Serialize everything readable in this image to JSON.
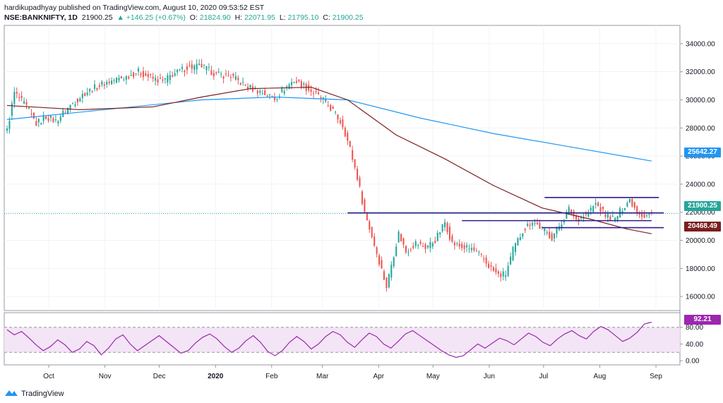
{
  "header": {
    "publish_line": "hardikupadhyay published on TradingView.com, August 10, 2020 09:53:52 EST",
    "symbol": "NSE:BANKNIFTY, 1D",
    "last": "21900.25",
    "change": "▲ +146.25 (+0.67%)",
    "open_label": "O:",
    "open": "21824.90",
    "high_label": "H:",
    "high": "22071.95",
    "low_label": "L:",
    "low": "21795.10",
    "close_label": "C:",
    "close": "21900.25"
  },
  "footer": {
    "brand": "TradingView"
  },
  "colors": {
    "up": "#26a69a",
    "down": "#ef5350",
    "ma_fast": "#7b1e1e",
    "ma_slow": "#2196f3",
    "levels": "#311b92",
    "rsi": "#9c27b0",
    "rsi_band": "#f3e5f5",
    "last_price": "#26a69a",
    "ma_fast_tag": "#7b1e1e",
    "ma_slow_tag": "#2196f3"
  },
  "chart_data": [
    {
      "type": "candlestick",
      "title": "",
      "x_ticks": [
        "Oct",
        "Nov",
        "Dec",
        "2020",
        "Feb",
        "Mar",
        "Apr",
        "May",
        "Jun",
        "Jul",
        "Aug",
        "Sep"
      ],
      "y_ticks": [
        "34000.00",
        "32000.00",
        "30000.00",
        "28000.00",
        "26000.00",
        "24000.00",
        "22000.00",
        "20000.00",
        "18000.00",
        "16000.00"
      ],
      "ylim": [
        15000,
        35200
      ],
      "close_path": [
        [
          0,
          27800
        ],
        [
          3,
          30500
        ],
        [
          8,
          29500
        ],
        [
          12,
          28300
        ],
        [
          16,
          28800
        ],
        [
          20,
          28500
        ],
        [
          26,
          29600
        ],
        [
          32,
          30500
        ],
        [
          40,
          31200
        ],
        [
          48,
          31600
        ],
        [
          54,
          32000
        ],
        [
          60,
          31500
        ],
        [
          64,
          31300
        ],
        [
          68,
          31800
        ],
        [
          74,
          32300
        ],
        [
          80,
          32400
        ],
        [
          86,
          31800
        ],
        [
          92,
          31700
        ],
        [
          98,
          31000
        ],
        [
          104,
          30600
        ],
        [
          110,
          30100
        ],
        [
          114,
          30800
        ],
        [
          118,
          31400
        ],
        [
          122,
          31000
        ],
        [
          126,
          30500
        ],
        [
          130,
          30000
        ],
        [
          134,
          29200
        ],
        [
          138,
          28200
        ],
        [
          141,
          26500
        ],
        [
          144,
          24500
        ],
        [
          147,
          22000
        ],
        [
          150,
          20300
        ],
        [
          153,
          18500
        ],
        [
          156,
          16700
        ],
        [
          158,
          18300
        ],
        [
          161,
          20500
        ],
        [
          164,
          19200
        ],
        [
          168,
          19800
        ],
        [
          172,
          19500
        ],
        [
          176,
          20000
        ],
        [
          180,
          21300
        ],
        [
          183,
          19800
        ],
        [
          187,
          19500
        ],
        [
          191,
          19400
        ],
        [
          195,
          18800
        ],
        [
          199,
          18000
        ],
        [
          202,
          17500
        ],
        [
          205,
          17600
        ],
        [
          208,
          19300
        ],
        [
          212,
          20700
        ],
        [
          216,
          21400
        ],
        [
          220,
          20800
        ],
        [
          224,
          20200
        ],
        [
          228,
          21300
        ],
        [
          231,
          22200
        ],
        [
          234,
          21500
        ],
        [
          238,
          21800
        ],
        [
          242,
          22600
        ],
        [
          246,
          21800
        ],
        [
          250,
          21500
        ],
        [
          253,
          22300
        ],
        [
          256,
          22900
        ],
        [
          259,
          22100
        ],
        [
          262,
          21700
        ],
        [
          265,
          21900
        ]
      ],
      "ma_slow": {
        "label": "25642.27",
        "points": [
          [
            0,
            28600
          ],
          [
            40,
            29300
          ],
          [
            80,
            30000
          ],
          [
            110,
            30200
          ],
          [
            140,
            30000
          ],
          [
            170,
            28700
          ],
          [
            200,
            27600
          ],
          [
            230,
            26700
          ],
          [
            265,
            25642
          ]
        ]
      },
      "ma_fast": {
        "label": "20468.49",
        "points": [
          [
            0,
            29600
          ],
          [
            30,
            29300
          ],
          [
            60,
            29500
          ],
          [
            80,
            30200
          ],
          [
            100,
            30800
          ],
          [
            125,
            30900
          ],
          [
            140,
            30000
          ],
          [
            160,
            27500
          ],
          [
            180,
            25800
          ],
          [
            200,
            23900
          ],
          [
            220,
            22300
          ],
          [
            240,
            21500
          ],
          [
            255,
            20800
          ],
          [
            265,
            20468
          ]
        ]
      },
      "last_price": "21900.25",
      "horizontal_levels": [
        {
          "x": [
            140,
            270
          ],
          "y": 21950
        },
        {
          "x": [
            187,
            265
          ],
          "y": 21400
        },
        {
          "x": [
            220,
            270
          ],
          "y": 20900
        },
        {
          "x": [
            221,
            268
          ],
          "y": 23050
        }
      ]
    },
    {
      "type": "line",
      "title": "",
      "y_ticks": [
        "80.00",
        "40.00",
        "0.00"
      ],
      "ylim": [
        -10,
        115
      ],
      "band": [
        20,
        80
      ],
      "last_value": "92.21",
      "values": [
        74,
        62,
        70,
        55,
        38,
        24,
        34,
        50,
        38,
        20,
        28,
        46,
        36,
        14,
        30,
        52,
        62,
        40,
        24,
        36,
        48,
        60,
        46,
        32,
        18,
        24,
        42,
        56,
        64,
        52,
        34,
        20,
        30,
        48,
        60,
        44,
        22,
        12,
        24,
        44,
        58,
        46,
        28,
        40,
        58,
        70,
        62,
        44,
        32,
        50,
        66,
        58,
        40,
        30,
        46,
        64,
        72,
        60,
        48,
        36,
        24,
        14,
        8,
        12,
        26,
        40,
        30,
        42,
        54,
        48,
        38,
        52,
        66,
        58,
        44,
        36,
        52,
        64,
        72,
        60,
        52,
        70,
        82,
        74,
        60,
        46,
        54,
        68,
        88,
        92.21
      ]
    }
  ]
}
